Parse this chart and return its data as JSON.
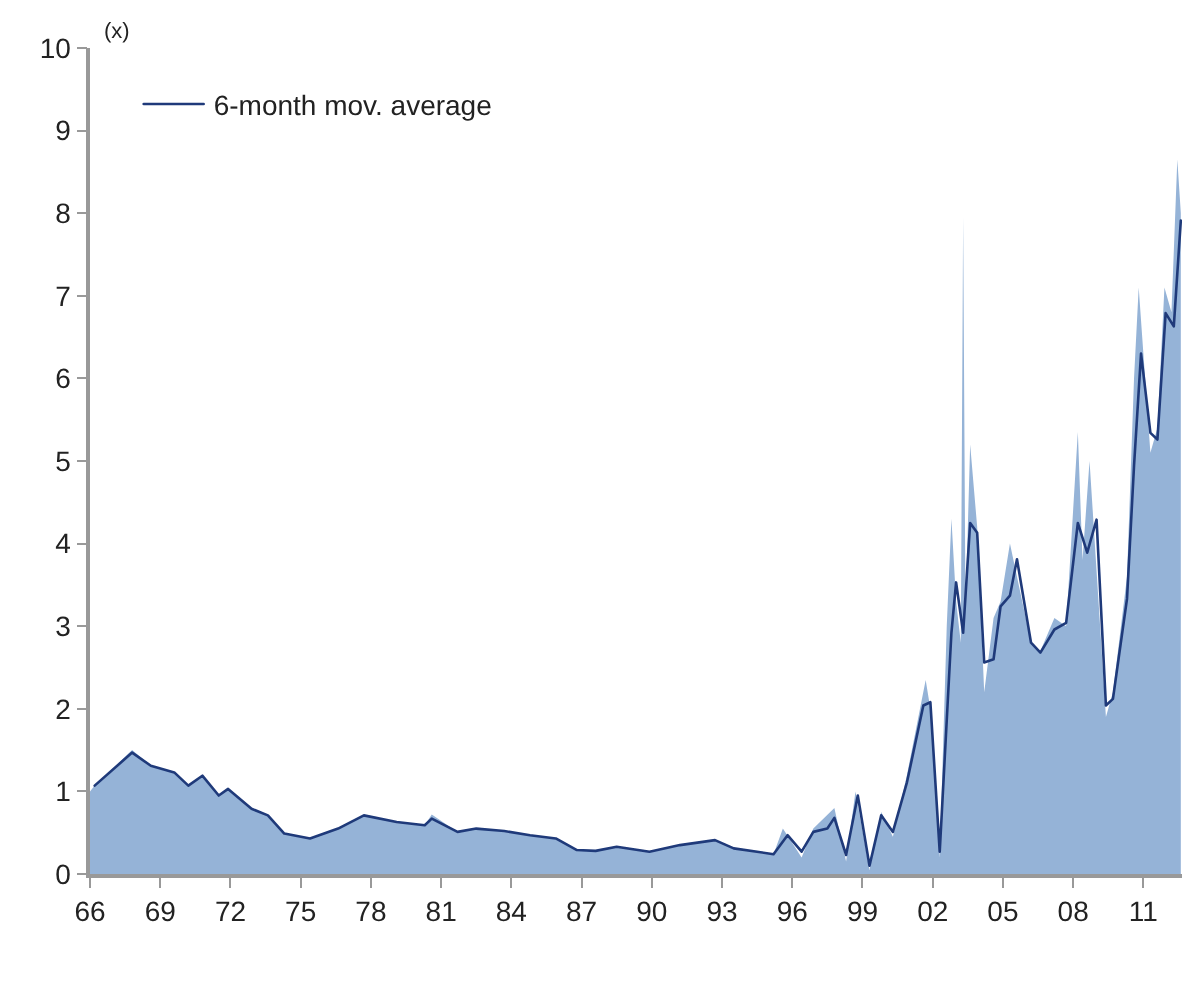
{
  "chart_data": {
    "type": "area",
    "ylabel": "(x)",
    "xlim": [
      1966,
      2012.65
    ],
    "ylim": [
      0,
      10
    ],
    "xticks": [
      {
        "value": 1966,
        "label": "66"
      },
      {
        "value": 1969,
        "label": "69"
      },
      {
        "value": 1972,
        "label": "72"
      },
      {
        "value": 1975,
        "label": "75"
      },
      {
        "value": 1978,
        "label": "78"
      },
      {
        "value": 1981,
        "label": "81"
      },
      {
        "value": 1984,
        "label": "84"
      },
      {
        "value": 1987,
        "label": "87"
      },
      {
        "value": 1990,
        "label": "90"
      },
      {
        "value": 1993,
        "label": "93"
      },
      {
        "value": 1996,
        "label": "96"
      },
      {
        "value": 1999,
        "label": "99"
      },
      {
        "value": 2002,
        "label": "02"
      },
      {
        "value": 2005,
        "label": "05"
      },
      {
        "value": 2008,
        "label": "08"
      },
      {
        "value": 2011,
        "label": "11"
      }
    ],
    "yticks": [
      0,
      1,
      2,
      3,
      4,
      5,
      6,
      7,
      8,
      9,
      10
    ],
    "legend": "top left",
    "series": [
      {
        "color": "#95b3d7",
        "x": [
          1966.0,
          1966.2,
          1967.8,
          1968.6,
          1969.6,
          1970.2,
          1970.8,
          1971.5,
          1971.9,
          1972.9,
          1973.6,
          1974.3,
          1975.4,
          1976.6,
          1977.7,
          1979.1,
          1980.3,
          1980.6,
          1981.7,
          1982.5,
          1983.7,
          1984.8,
          1985.9,
          1986.8,
          1987.6,
          1988.5,
          1989.9,
          1991.2,
          1992.7,
          1993.5,
          1995.2,
          1995.6,
          1996.4,
          1996.9,
          1997.8,
          1998.3,
          1998.7,
          1999.3,
          1999.8,
          2000.3,
          2000.9,
          2001.7,
          2001.9,
          2002.3,
          2002.6,
          2002.8,
          2003.0,
          2003.2,
          2003.3,
          2003.4,
          2003.6,
          2003.9,
          2004.2,
          2004.6,
          2004.9,
          2005.3,
          2005.6,
          2006.2,
          2006.6,
          2007.2,
          2007.7,
          2008.2,
          2008.4,
          2008.7,
          2009.4,
          2009.7,
          2010.3,
          2010.6,
          2010.8,
          2011.3,
          2011.6,
          2011.9,
          2012.2,
          2012.45,
          2012.6
        ],
        "values": [
          1.0,
          1.07,
          1.5,
          1.31,
          1.23,
          1.07,
          1.2,
          0.95,
          1.03,
          0.79,
          0.71,
          0.49,
          0.43,
          0.55,
          0.71,
          0.63,
          0.59,
          0.72,
          0.51,
          0.55,
          0.52,
          0.47,
          0.43,
          0.29,
          0.28,
          0.33,
          0.27,
          0.35,
          0.41,
          0.31,
          0.24,
          0.55,
          0.2,
          0.55,
          0.8,
          0.15,
          1.0,
          0.05,
          0.75,
          0.45,
          1.2,
          2.35,
          2.0,
          0.2,
          3.0,
          4.3,
          3.3,
          2.8,
          7.95,
          3.2,
          5.2,
          4.2,
          2.2,
          3.1,
          3.3,
          4.0,
          3.6,
          2.8,
          2.7,
          3.1,
          3.0,
          5.35,
          3.8,
          5.0,
          1.9,
          2.2,
          3.6,
          6.0,
          7.1,
          5.1,
          5.4,
          7.1,
          6.8,
          8.65,
          8.0
        ]
      },
      {
        "type": "line",
        "name": "6-month mov. average",
        "color": "#1f3a7a",
        "x": [
          1966.2,
          1967.8,
          1968.6,
          1969.6,
          1970.2,
          1970.8,
          1971.5,
          1971.9,
          1972.9,
          1973.6,
          1974.3,
          1975.4,
          1976.6,
          1977.7,
          1979.1,
          1980.3,
          1980.6,
          1981.7,
          1982.5,
          1983.7,
          1984.8,
          1985.9,
          1986.8,
          1987.6,
          1988.5,
          1989.9,
          1991.2,
          1992.7,
          1993.5,
          1995.2,
          1995.8,
          1996.4,
          1996.9,
          1997.5,
          1997.8,
          1998.3,
          1998.8,
          1999.3,
          1999.8,
          2000.3,
          2000.9,
          2001.6,
          2001.9,
          2002.3,
          2002.8,
          2003.0,
          2003.3,
          2003.6,
          2003.9,
          2004.2,
          2004.6,
          2004.9,
          2005.3,
          2005.6,
          2006.2,
          2006.6,
          2007.2,
          2007.7,
          2008.2,
          2008.6,
          2009.0,
          2009.4,
          2009.7,
          2010.3,
          2010.6,
          2010.9,
          2011.3,
          2011.6,
          2011.95,
          2012.3,
          2012.6
        ],
        "values": [
          1.07,
          1.47,
          1.31,
          1.23,
          1.07,
          1.19,
          0.95,
          1.03,
          0.79,
          0.71,
          0.49,
          0.43,
          0.55,
          0.71,
          0.63,
          0.59,
          0.67,
          0.51,
          0.55,
          0.52,
          0.47,
          0.43,
          0.29,
          0.28,
          0.33,
          0.27,
          0.35,
          0.41,
          0.31,
          0.24,
          0.47,
          0.27,
          0.51,
          0.55,
          0.68,
          0.23,
          0.95,
          0.1,
          0.71,
          0.51,
          1.11,
          2.04,
          2.08,
          0.27,
          2.92,
          3.53,
          2.92,
          4.25,
          4.13,
          2.56,
          2.6,
          3.24,
          3.37,
          3.81,
          2.8,
          2.68,
          2.96,
          3.04,
          4.25,
          3.89,
          4.29,
          2.04,
          2.12,
          3.33,
          4.94,
          6.3,
          5.34,
          5.26,
          6.79,
          6.63,
          7.91
        ]
      }
    ]
  }
}
